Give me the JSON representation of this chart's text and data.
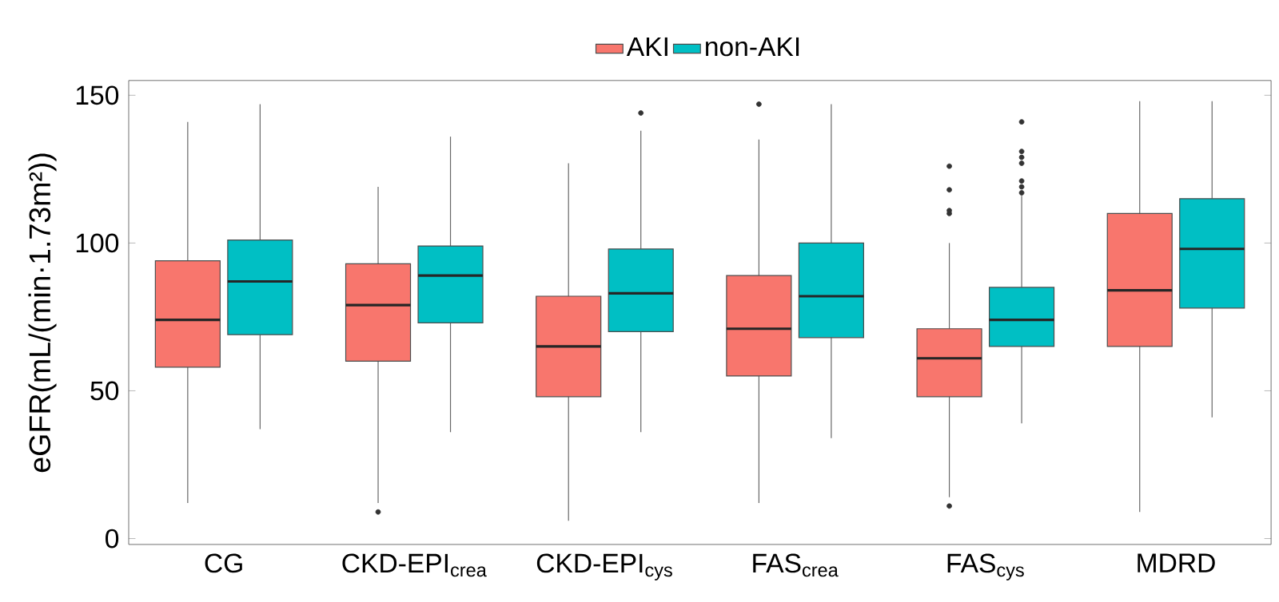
{
  "chart_data": {
    "type": "box",
    "ylabel": "eGFR(mL/(min·1.73m²))",
    "categories": [
      "CG",
      "CKD-EPI$_{crea}$",
      "CKD-EPI$_{cys}$",
      "FAS$_{crea}$",
      "FAS$_{cys}$",
      "MDRD"
    ],
    "ylim": [
      -2,
      155
    ],
    "yticks": [
      0,
      50,
      100,
      150
    ],
    "grid": false,
    "legend": "top",
    "series": [
      {
        "name": "AKI",
        "color": "#f8766d",
        "boxes": [
          {
            "low": 12,
            "q1": 58,
            "median": 74,
            "q3": 94,
            "high": 141
          },
          {
            "low": 12,
            "q1": 60,
            "median": 79,
            "q3": 93,
            "high": 119,
            "outliers": [
              9
            ]
          },
          {
            "low": 6,
            "q1": 48,
            "median": 65,
            "q3": 82,
            "high": 127
          },
          {
            "low": 12,
            "q1": 55,
            "median": 71,
            "q3": 89,
            "high": 135,
            "outliers": [
              147
            ]
          },
          {
            "low": 14,
            "q1": 48,
            "median": 61,
            "q3": 71,
            "high": 100,
            "outliers": [
              11,
              110,
              111,
              118,
              126
            ]
          },
          {
            "low": 9,
            "q1": 65,
            "median": 84,
            "q3": 110,
            "high": 148
          }
        ]
      },
      {
        "name": "non-AKI",
        "color": "#00bfc4",
        "boxes": [
          {
            "low": 37,
            "q1": 69,
            "median": 87,
            "q3": 101,
            "high": 147
          },
          {
            "low": 36,
            "q1": 73,
            "median": 89,
            "q3": 99,
            "high": 136
          },
          {
            "low": 36,
            "q1": 70,
            "median": 83,
            "q3": 98,
            "high": 138,
            "outliers": [
              144
            ]
          },
          {
            "low": 34,
            "q1": 68,
            "median": 82,
            "q3": 100,
            "high": 147
          },
          {
            "low": 39,
            "q1": 65,
            "median": 74,
            "q3": 85,
            "high": 116,
            "outliers": [
              117,
              119,
              121,
              127,
              129,
              131,
              141
            ]
          },
          {
            "low": 41,
            "q1": 78,
            "median": 98,
            "q3": 115,
            "high": 148
          }
        ]
      }
    ]
  }
}
